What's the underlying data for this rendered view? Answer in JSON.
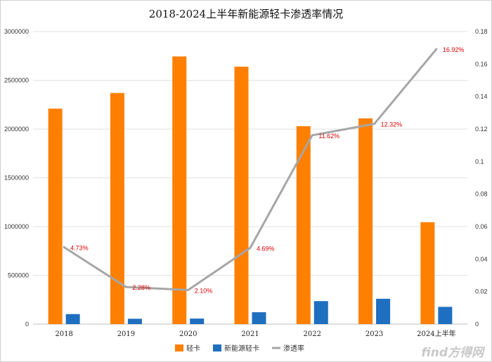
{
  "chart_data": {
    "type": "bar",
    "title": "2018-2024上半年新能源轻卡渗透率情况",
    "categories": [
      "2018",
      "2019",
      "2020",
      "2021",
      "2022",
      "2023",
      "2024上半年"
    ],
    "series": [
      {
        "name": "轻卡",
        "kind": "bar",
        "axis": "left",
        "color": "#ff7f00",
        "values": [
          2210000,
          2370000,
          2745000,
          2640000,
          2030000,
          2110000,
          1045000
        ]
      },
      {
        "name": "新能源轻卡",
        "kind": "bar",
        "axis": "left",
        "color": "#1f6fc0",
        "values": [
          103000,
          55000,
          57000,
          122000,
          236000,
          260000,
          177000
        ]
      },
      {
        "name": "渗透率",
        "kind": "line",
        "axis": "right",
        "color": "#a6a6a6",
        "values": [
          0.0473,
          0.0228,
          0.021,
          0.0469,
          0.1162,
          0.1232,
          0.1692
        ],
        "labels": [
          "4.73%",
          "2.28%",
          "2.10%",
          "4.69%",
          "11.62%",
          "12.32%",
          "16.92%"
        ]
      }
    ],
    "y_left": {
      "min": 0,
      "max": 3000000,
      "ticks": [
        0,
        500000,
        1000000,
        1500000,
        2000000,
        2500000,
        3000000
      ]
    },
    "y_right": {
      "min": 0,
      "max": 0.18,
      "ticks": [
        "0",
        "0.02",
        "0.04",
        "0.06",
        "0.08",
        "0.1",
        "0.12",
        "0.14",
        "0.16",
        "0.18"
      ]
    },
    "grid": true,
    "legend": "bottom"
  },
  "watermark": "find方得网"
}
